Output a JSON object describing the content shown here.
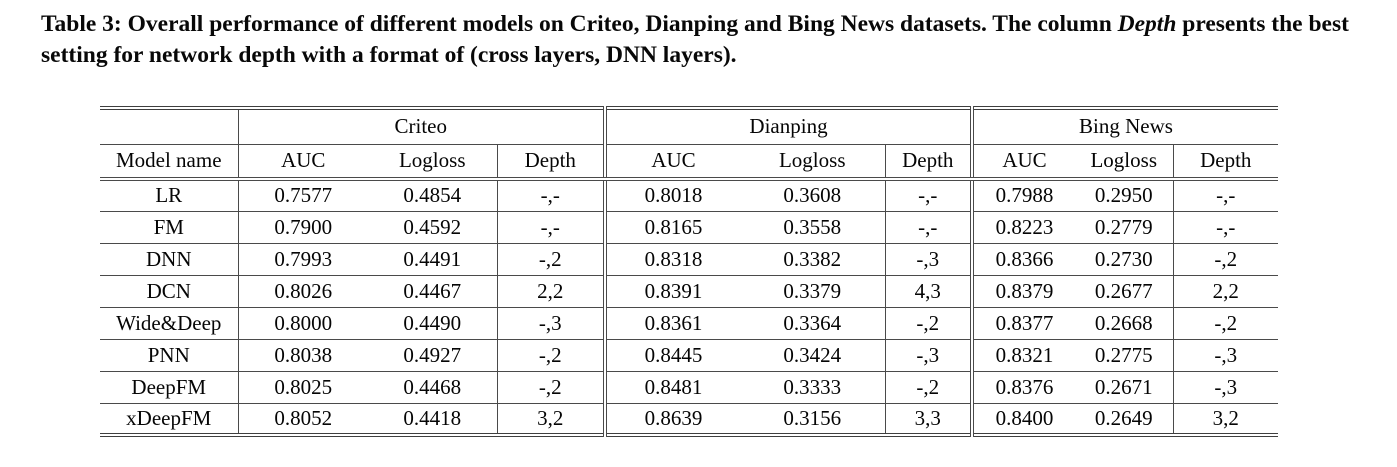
{
  "colors": {
    "background": "#ffffff",
    "text": "#050505",
    "rule": "#4a4a4a"
  },
  "caption": {
    "label": "Table 3:",
    "text_before_italic": "Overall performance of different models on Criteo, Dianping and Bing News datasets. The column",
    "italic_word": "Depth",
    "text_after_italic": "presents the best setting for network depth with a format of (cross layers, DNN layers)."
  },
  "table": {
    "model_column_header": "Model name",
    "groups": [
      "Criteo",
      "Dianping",
      "Bing News"
    ],
    "sub_columns": [
      "AUC",
      "Logloss",
      "Depth"
    ],
    "rows": [
      {
        "model": "LR",
        "best": false,
        "criteo": {
          "auc": "0.7577",
          "logloss": "0.4854",
          "depth": "-,-"
        },
        "dianping": {
          "auc": "0.8018",
          "logloss": "0.3608",
          "depth": "-,-"
        },
        "bing_news": {
          "auc": "0.7988",
          "logloss": "0.2950",
          "depth": "-,-"
        }
      },
      {
        "model": "FM",
        "best": false,
        "criteo": {
          "auc": "0.7900",
          "logloss": "0.4592",
          "depth": "-,-"
        },
        "dianping": {
          "auc": "0.8165",
          "logloss": "0.3558",
          "depth": "-,-"
        },
        "bing_news": {
          "auc": "0.8223",
          "logloss": "0.2779",
          "depth": "-,-"
        }
      },
      {
        "model": "DNN",
        "best": false,
        "criteo": {
          "auc": "0.7993",
          "logloss": "0.4491",
          "depth": "-,2"
        },
        "dianping": {
          "auc": "0.8318",
          "logloss": "0.3382",
          "depth": "-,3"
        },
        "bing_news": {
          "auc": "0.8366",
          "logloss": "0.2730",
          "depth": "-,2"
        }
      },
      {
        "model": "DCN",
        "best": false,
        "criteo": {
          "auc": "0.8026",
          "logloss": "0.4467",
          "depth": "2,2"
        },
        "dianping": {
          "auc": "0.8391",
          "logloss": "0.3379",
          "depth": "4,3"
        },
        "bing_news": {
          "auc": "0.8379",
          "logloss": "0.2677",
          "depth": "2,2"
        }
      },
      {
        "model": "Wide&Deep",
        "best": false,
        "criteo": {
          "auc": "0.8000",
          "logloss": "0.4490",
          "depth": "-,3"
        },
        "dianping": {
          "auc": "0.8361",
          "logloss": "0.3364",
          "depth": "-,2"
        },
        "bing_news": {
          "auc": "0.8377",
          "logloss": "0.2668",
          "depth": "-,2"
        }
      },
      {
        "model": "PNN",
        "best": false,
        "criteo": {
          "auc": "0.8038",
          "logloss": "0.4927",
          "depth": "-,2"
        },
        "dianping": {
          "auc": "0.8445",
          "logloss": "0.3424",
          "depth": "-,3"
        },
        "bing_news": {
          "auc": "0.8321",
          "logloss": "0.2775",
          "depth": "-,3"
        }
      },
      {
        "model": "DeepFM",
        "best": false,
        "criteo": {
          "auc": "0.8025",
          "logloss": "0.4468",
          "depth": "-,2"
        },
        "dianping": {
          "auc": "0.8481",
          "logloss": "0.3333",
          "depth": "-,2"
        },
        "bing_news": {
          "auc": "0.8376",
          "logloss": "0.2671",
          "depth": "-,3"
        }
      },
      {
        "model": "xDeepFM",
        "best": true,
        "criteo": {
          "auc": "0.8052",
          "logloss": "0.4418",
          "depth": "3,2"
        },
        "dianping": {
          "auc": "0.8639",
          "logloss": "0.3156",
          "depth": "3,3"
        },
        "bing_news": {
          "auc": "0.8400",
          "logloss": "0.2649",
          "depth": "3,2"
        }
      }
    ]
  }
}
